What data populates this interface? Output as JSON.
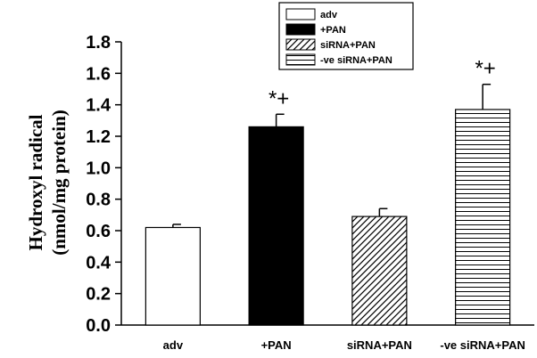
{
  "chart_data": {
    "type": "bar",
    "categories": [
      "adv",
      "+PAN",
      "siRNA+PAN",
      "-ve siRNA+PAN"
    ],
    "values": [
      0.62,
      1.26,
      0.69,
      1.37
    ],
    "errors": [
      0.02,
      0.08,
      0.05,
      0.16
    ],
    "fills": [
      "white",
      "black",
      "diagonal",
      "horizontal"
    ],
    "significance": [
      "",
      "*+",
      "",
      "*+"
    ],
    "ylabel_line1": "Hydroxyl radical",
    "ylabel_line2": "(nmol/mg protein)",
    "ylim": [
      0,
      1.8
    ],
    "yticks": [
      "0.0",
      "0.2",
      "0.4",
      "0.6",
      "0.8",
      "1.0",
      "1.2",
      "1.4",
      "1.6",
      "1.8"
    ],
    "legend": {
      "position": "top-center",
      "entries": [
        "adv",
        "+PAN",
        "siRNA+PAN",
        "-ve siRNA+PAN"
      ]
    }
  }
}
